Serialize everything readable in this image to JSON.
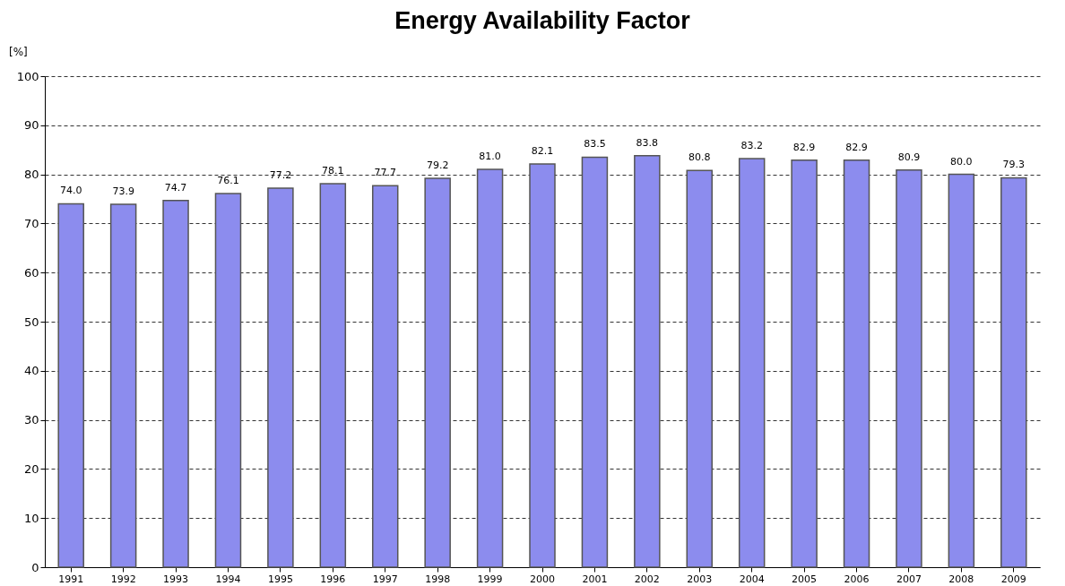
{
  "chart_data": {
    "type": "bar",
    "title": "Energy Availability Factor",
    "ylabel": "[%]",
    "categories": [
      "1991",
      "1992",
      "1993",
      "1994",
      "1995",
      "1996",
      "1997",
      "1998",
      "1999",
      "2000",
      "2001",
      "2002",
      "2003",
      "2004",
      "2005",
      "2006",
      "2007",
      "2008",
      "2009"
    ],
    "values": [
      74.0,
      73.9,
      74.7,
      76.1,
      77.2,
      78.1,
      77.7,
      79.2,
      81.0,
      82.1,
      83.5,
      83.8,
      80.8,
      83.2,
      82.9,
      82.9,
      80.9,
      80.0,
      79.3
    ],
    "color": "#8c8cee",
    "value_labels": [
      "74.0",
      "73.9",
      "74.7",
      "76.1",
      "77.2",
      "78.1",
      "77.7",
      "79.2",
      "81.0",
      "82.1",
      "83.5",
      "83.8",
      "80.8",
      "83.2",
      "82.9",
      "82.9",
      "80.9",
      "80.0",
      "79.3"
    ],
    "ylim": [
      0,
      100
    ],
    "yticks": [
      0,
      10,
      20,
      30,
      40,
      50,
      60,
      70,
      80,
      90,
      100
    ],
    "grid": "y",
    "line_style": "dashed"
  }
}
